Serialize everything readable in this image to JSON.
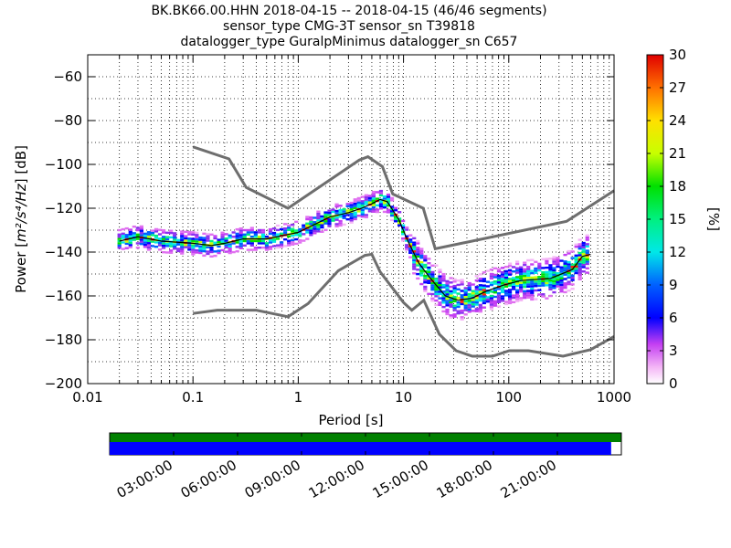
{
  "chart_data": {
    "type": "heatmap",
    "title_lines": [
      "BK.BK66.00.HHN   2018-04-15 -- 2018-04-15  (46/46 segments)",
      "sensor_type CMG-3T sensor_sn T39818",
      "datalogger_type GuralpMinimus datalogger_sn C657"
    ],
    "xlabel": "Period [s]",
    "ylabel_prefix": "Power [",
    "ylabel_units": "m²/s⁴/Hz",
    "ylabel_suffix": "] [dB]",
    "xscale": "log",
    "xlim": [
      0.01,
      1000
    ],
    "ylim": [
      -200,
      -50
    ],
    "x_ticks": [
      {
        "value": 0.01,
        "label": "0.01"
      },
      {
        "value": 0.1,
        "label": "0.1"
      },
      {
        "value": 1,
        "label": "1"
      },
      {
        "value": 10,
        "label": "10"
      },
      {
        "value": 100,
        "label": "100"
      },
      {
        "value": 1000,
        "label": "1000"
      }
    ],
    "y_ticks": [
      {
        "value": -60,
        "label": "−60"
      },
      {
        "value": -80,
        "label": "−80"
      },
      {
        "value": -100,
        "label": "−100"
      },
      {
        "value": -120,
        "label": "−120"
      },
      {
        "value": -140,
        "label": "−140"
      },
      {
        "value": -160,
        "label": "−160"
      },
      {
        "value": -180,
        "label": "−180"
      },
      {
        "value": -200,
        "label": "−200"
      }
    ],
    "grid": true,
    "colorbar": {
      "label": "[%]",
      "range": [
        0,
        30
      ],
      "ticks": [
        {
          "value": 0,
          "label": "0"
        },
        {
          "value": 3,
          "label": "3"
        },
        {
          "value": 6,
          "label": "6"
        },
        {
          "value": 9,
          "label": "9"
        },
        {
          "value": 12,
          "label": "12"
        },
        {
          "value": 15,
          "label": "15"
        },
        {
          "value": 18,
          "label": "18"
        },
        {
          "value": 21,
          "label": "21"
        },
        {
          "value": 24,
          "label": "24"
        },
        {
          "value": 27,
          "label": "27"
        },
        {
          "value": 30,
          "label": "30"
        }
      ]
    },
    "series": [
      {
        "role": "noise-model-high",
        "color": "#6e6e6e",
        "points": [
          [
            0.1,
            -92
          ],
          [
            0.22,
            -97.5
          ],
          [
            0.32,
            -110.5
          ],
          [
            0.8,
            -120
          ],
          [
            3.8,
            -98
          ],
          [
            4.6,
            -96.5
          ],
          [
            6.3,
            -101
          ],
          [
            7.9,
            -113.5
          ],
          [
            15.4,
            -120
          ],
          [
            20,
            -138.5
          ],
          [
            354,
            -126
          ],
          [
            1000,
            -112
          ]
        ]
      },
      {
        "role": "noise-model-low",
        "color": "#6e6e6e",
        "points": [
          [
            0.1,
            -168
          ],
          [
            0.17,
            -166.5
          ],
          [
            0.4,
            -166.5
          ],
          [
            0.8,
            -169.5
          ],
          [
            1.24,
            -163.5
          ],
          [
            2.4,
            -148.5
          ],
          [
            4.3,
            -141.5
          ],
          [
            5,
            -141
          ],
          [
            6,
            -149
          ],
          [
            10,
            -163
          ],
          [
            12,
            -166.5
          ],
          [
            15.6,
            -162
          ],
          [
            21.9,
            -177.5
          ],
          [
            31.6,
            -185
          ],
          [
            45,
            -187.5
          ],
          [
            70,
            -187.5
          ],
          [
            101,
            -185
          ],
          [
            154,
            -185
          ],
          [
            328,
            -187.5
          ],
          [
            600,
            -184.5
          ],
          [
            1000,
            -178.5
          ]
        ]
      },
      {
        "role": "mode-curve",
        "color": "#000000",
        "points": [
          [
            0.02,
            -135
          ],
          [
            0.03,
            -133
          ],
          [
            0.05,
            -135
          ],
          [
            0.1,
            -136
          ],
          [
            0.15,
            -137
          ],
          [
            0.2,
            -136
          ],
          [
            0.3,
            -134
          ],
          [
            0.5,
            -134
          ],
          [
            1,
            -131
          ],
          [
            2,
            -124
          ],
          [
            3,
            -122
          ],
          [
            4,
            -120
          ],
          [
            5,
            -118
          ],
          [
            6,
            -116
          ],
          [
            7,
            -117
          ],
          [
            9,
            -125
          ],
          [
            11,
            -135
          ],
          [
            14,
            -145
          ],
          [
            18,
            -152
          ],
          [
            25,
            -160
          ],
          [
            33,
            -162
          ],
          [
            45,
            -161
          ],
          [
            60,
            -158
          ],
          [
            90,
            -155
          ],
          [
            130,
            -153
          ],
          [
            250,
            -152
          ],
          [
            400,
            -148
          ],
          [
            500,
            -142
          ],
          [
            600,
            -141
          ]
        ]
      }
    ],
    "data_availability": {
      "time_ticks": [
        "03:00:00",
        "06:00:00",
        "09:00:00",
        "12:00:00",
        "15:00:00",
        "18:00:00",
        "21:00:00"
      ],
      "top_bar": {
        "color": "#008000",
        "coverage": 1.0
      },
      "bottom_bar": {
        "color": "#0000ff",
        "coverage": 0.98
      }
    }
  }
}
